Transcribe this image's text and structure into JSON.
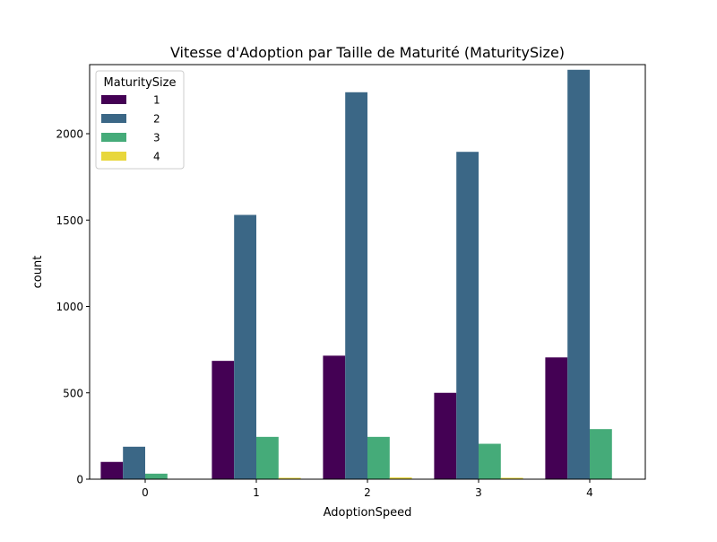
{
  "chart_data": {
    "type": "bar",
    "title": "Vitesse d'Adoption par Taille de Maturité (MaturitySize)",
    "xlabel": "AdoptionSpeed",
    "ylabel": "count",
    "categories": [
      "0",
      "1",
      "2",
      "3",
      "4"
    ],
    "series": [
      {
        "name": "1",
        "color": "#440154",
        "values": [
          100,
          685,
          715,
          500,
          705
        ]
      },
      {
        "name": "2",
        "color": "#3b6786",
        "values": [
          188,
          1530,
          2240,
          1895,
          2370
        ]
      },
      {
        "name": "3",
        "color": "#45ab79",
        "values": [
          32,
          245,
          245,
          205,
          290
        ]
      },
      {
        "name": "4",
        "color": "#e8d73c",
        "values": [
          0,
          8,
          10,
          8,
          0
        ]
      }
    ],
    "ylim": [
      0,
      2400
    ],
    "yticks": [
      0,
      500,
      1000,
      1500,
      2000
    ],
    "legend": {
      "title": "MaturitySize",
      "position": "upper-left"
    },
    "grid": false
  }
}
